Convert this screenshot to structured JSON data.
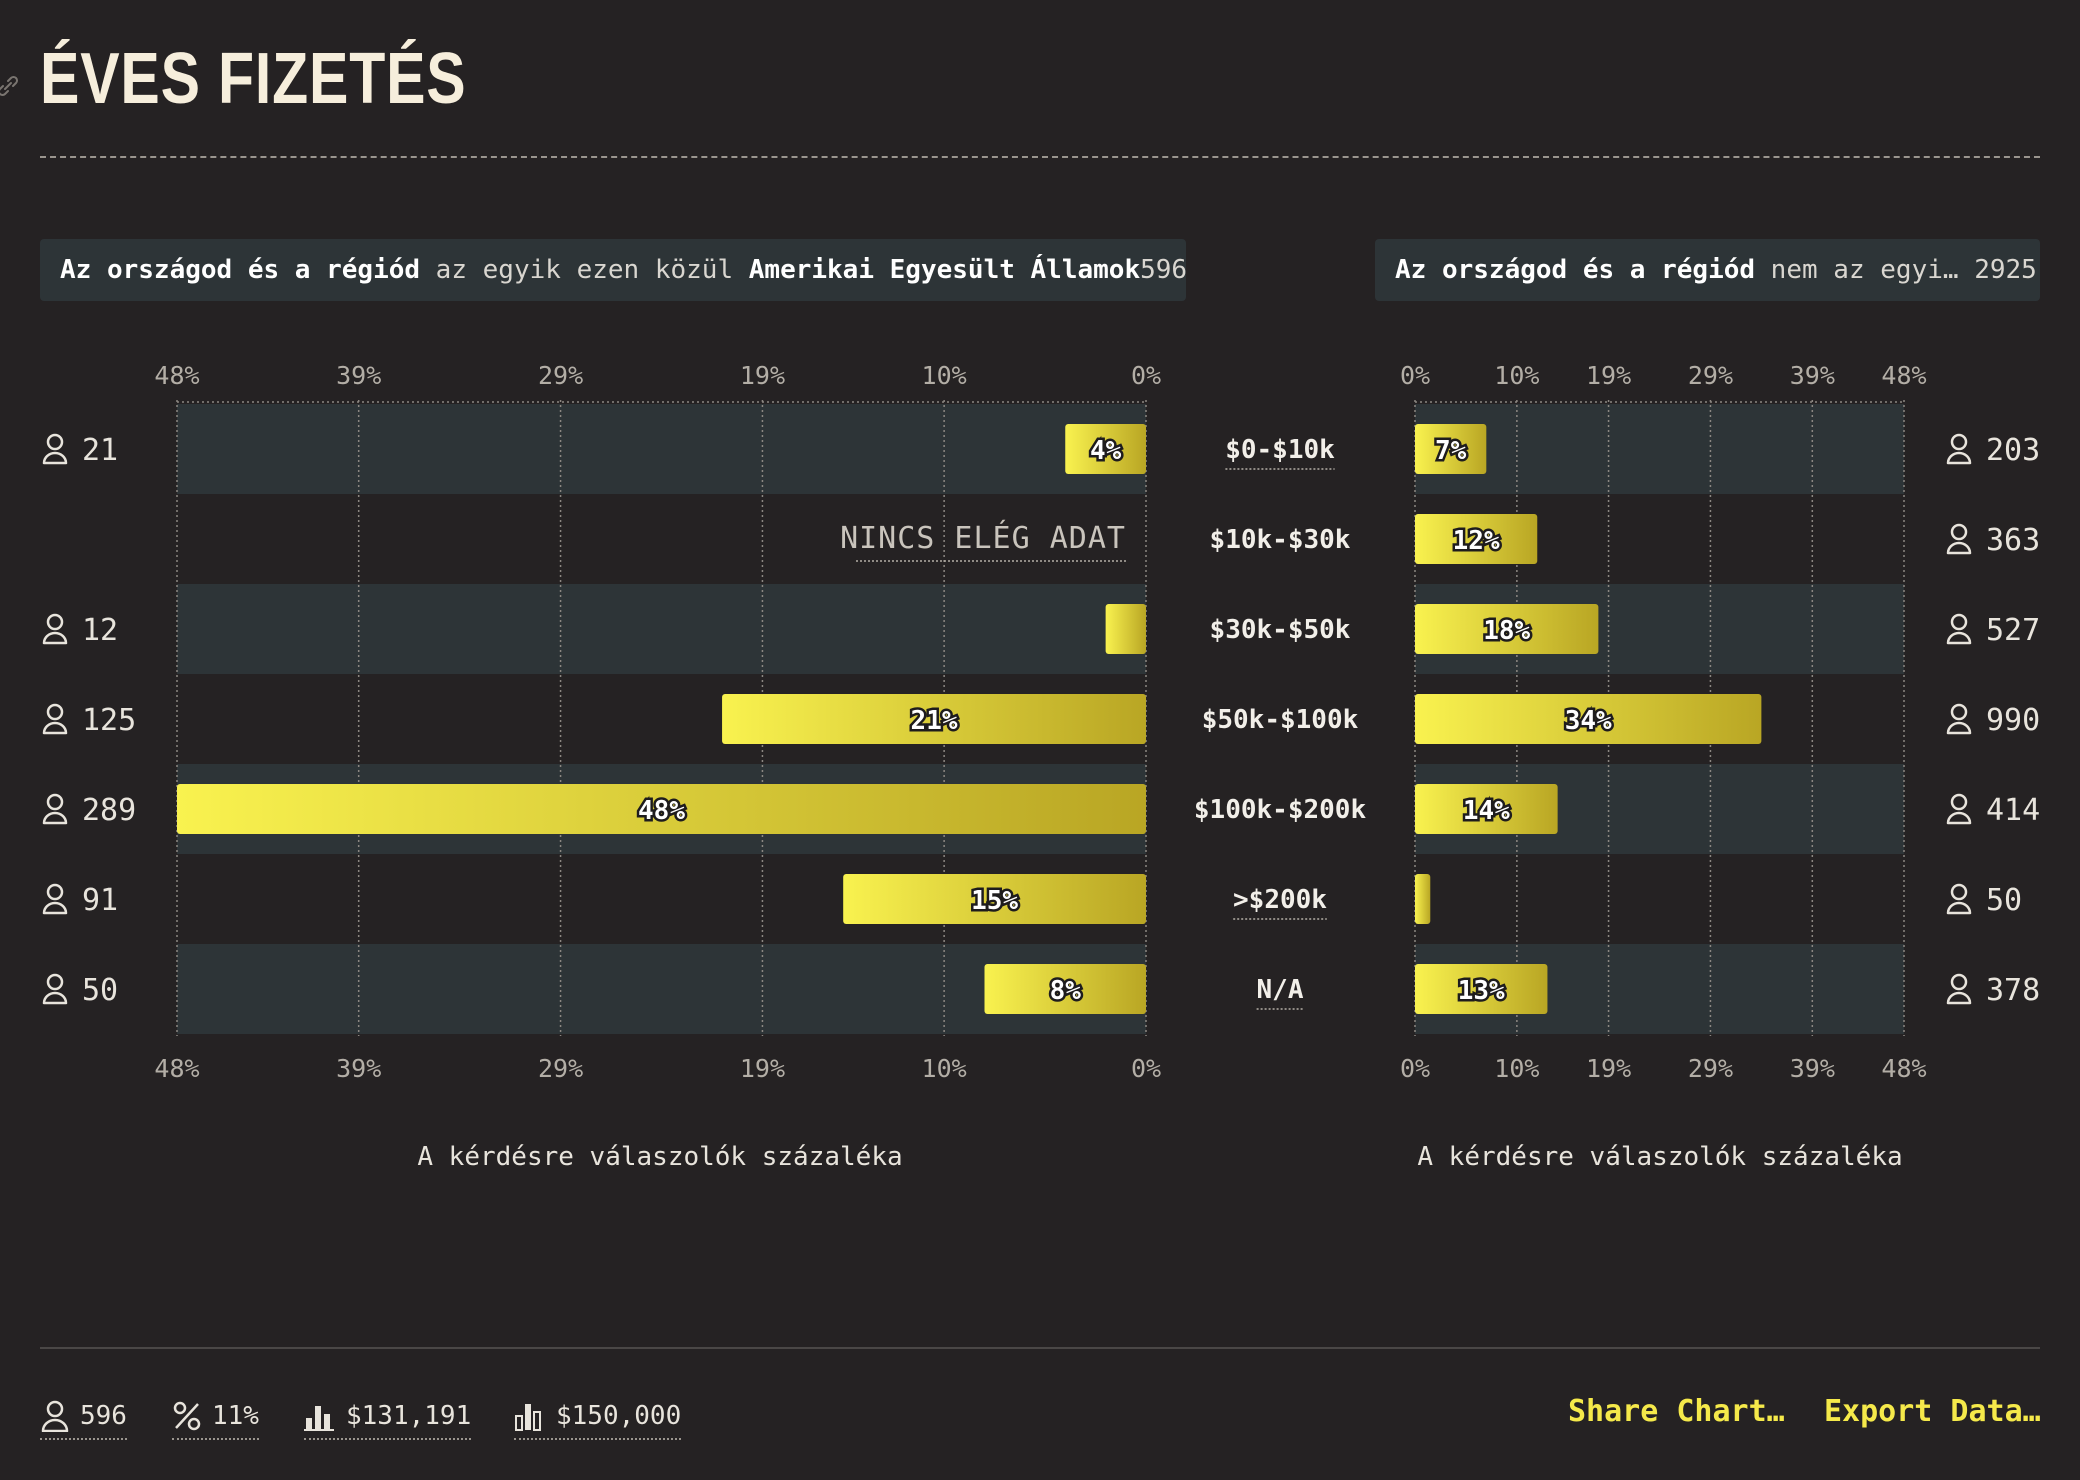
{
  "title": "ÉVES FIZETÉS",
  "filters": {
    "left": {
      "bold_prefix": "Az országod és a régiód",
      "mid": " az egyik ezen közül ",
      "bold_value": "Amerikai Egyesült Államok",
      "count": "596"
    },
    "right": {
      "bold_prefix": "Az országod és a régiód",
      "mid": " nem az egyi…",
      "count": "2925"
    }
  },
  "axis_title": "A kérdésre válaszolók százaléka",
  "no_data_label": "NINCS ELÉG ADAT",
  "chart_data": {
    "type": "bar",
    "categories": [
      "$0-$10k",
      "$10k-$30k",
      "$30k-$50k",
      "$50k-$100k",
      "$100k-$200k",
      ">$200k",
      "N/A"
    ],
    "underlined_categories": [
      "$0-$10k",
      ">$200k",
      "N/A"
    ],
    "tick_labels": [
      "0%",
      "10%",
      "19%",
      "29%",
      "39%",
      "48%"
    ],
    "xlim": [
      0,
      48
    ],
    "series": [
      {
        "side": "left",
        "values": [
          4,
          null,
          2,
          21,
          48,
          15,
          8
        ],
        "labels": [
          "4%",
          "",
          "",
          "21%",
          "48%",
          "15%",
          "8%"
        ],
        "counts": [
          "21",
          "",
          "12",
          "125",
          "289",
          "91",
          "50"
        ]
      },
      {
        "side": "right",
        "values": [
          7,
          12,
          18,
          34,
          14,
          1.5,
          13
        ],
        "labels": [
          "7%",
          "12%",
          "18%",
          "34%",
          "14%",
          "",
          "13%"
        ],
        "counts": [
          "203",
          "363",
          "527",
          "990",
          "414",
          "50",
          "378"
        ]
      }
    ],
    "colors": {
      "bar_start": "#f9f24f",
      "bar_end": "#b9a624",
      "band": "#2d3437"
    }
  },
  "footer": {
    "stats": [
      {
        "icon": "person-icon",
        "value": "596"
      },
      {
        "icon": "percent-icon",
        "value": "11%"
      },
      {
        "icon": "median-bars-icon",
        "value": "$131,191"
      },
      {
        "icon": "mode-bars-icon",
        "value": "$150,000"
      }
    ],
    "share_label": "Share Chart…",
    "export_label": "Export Data…"
  }
}
